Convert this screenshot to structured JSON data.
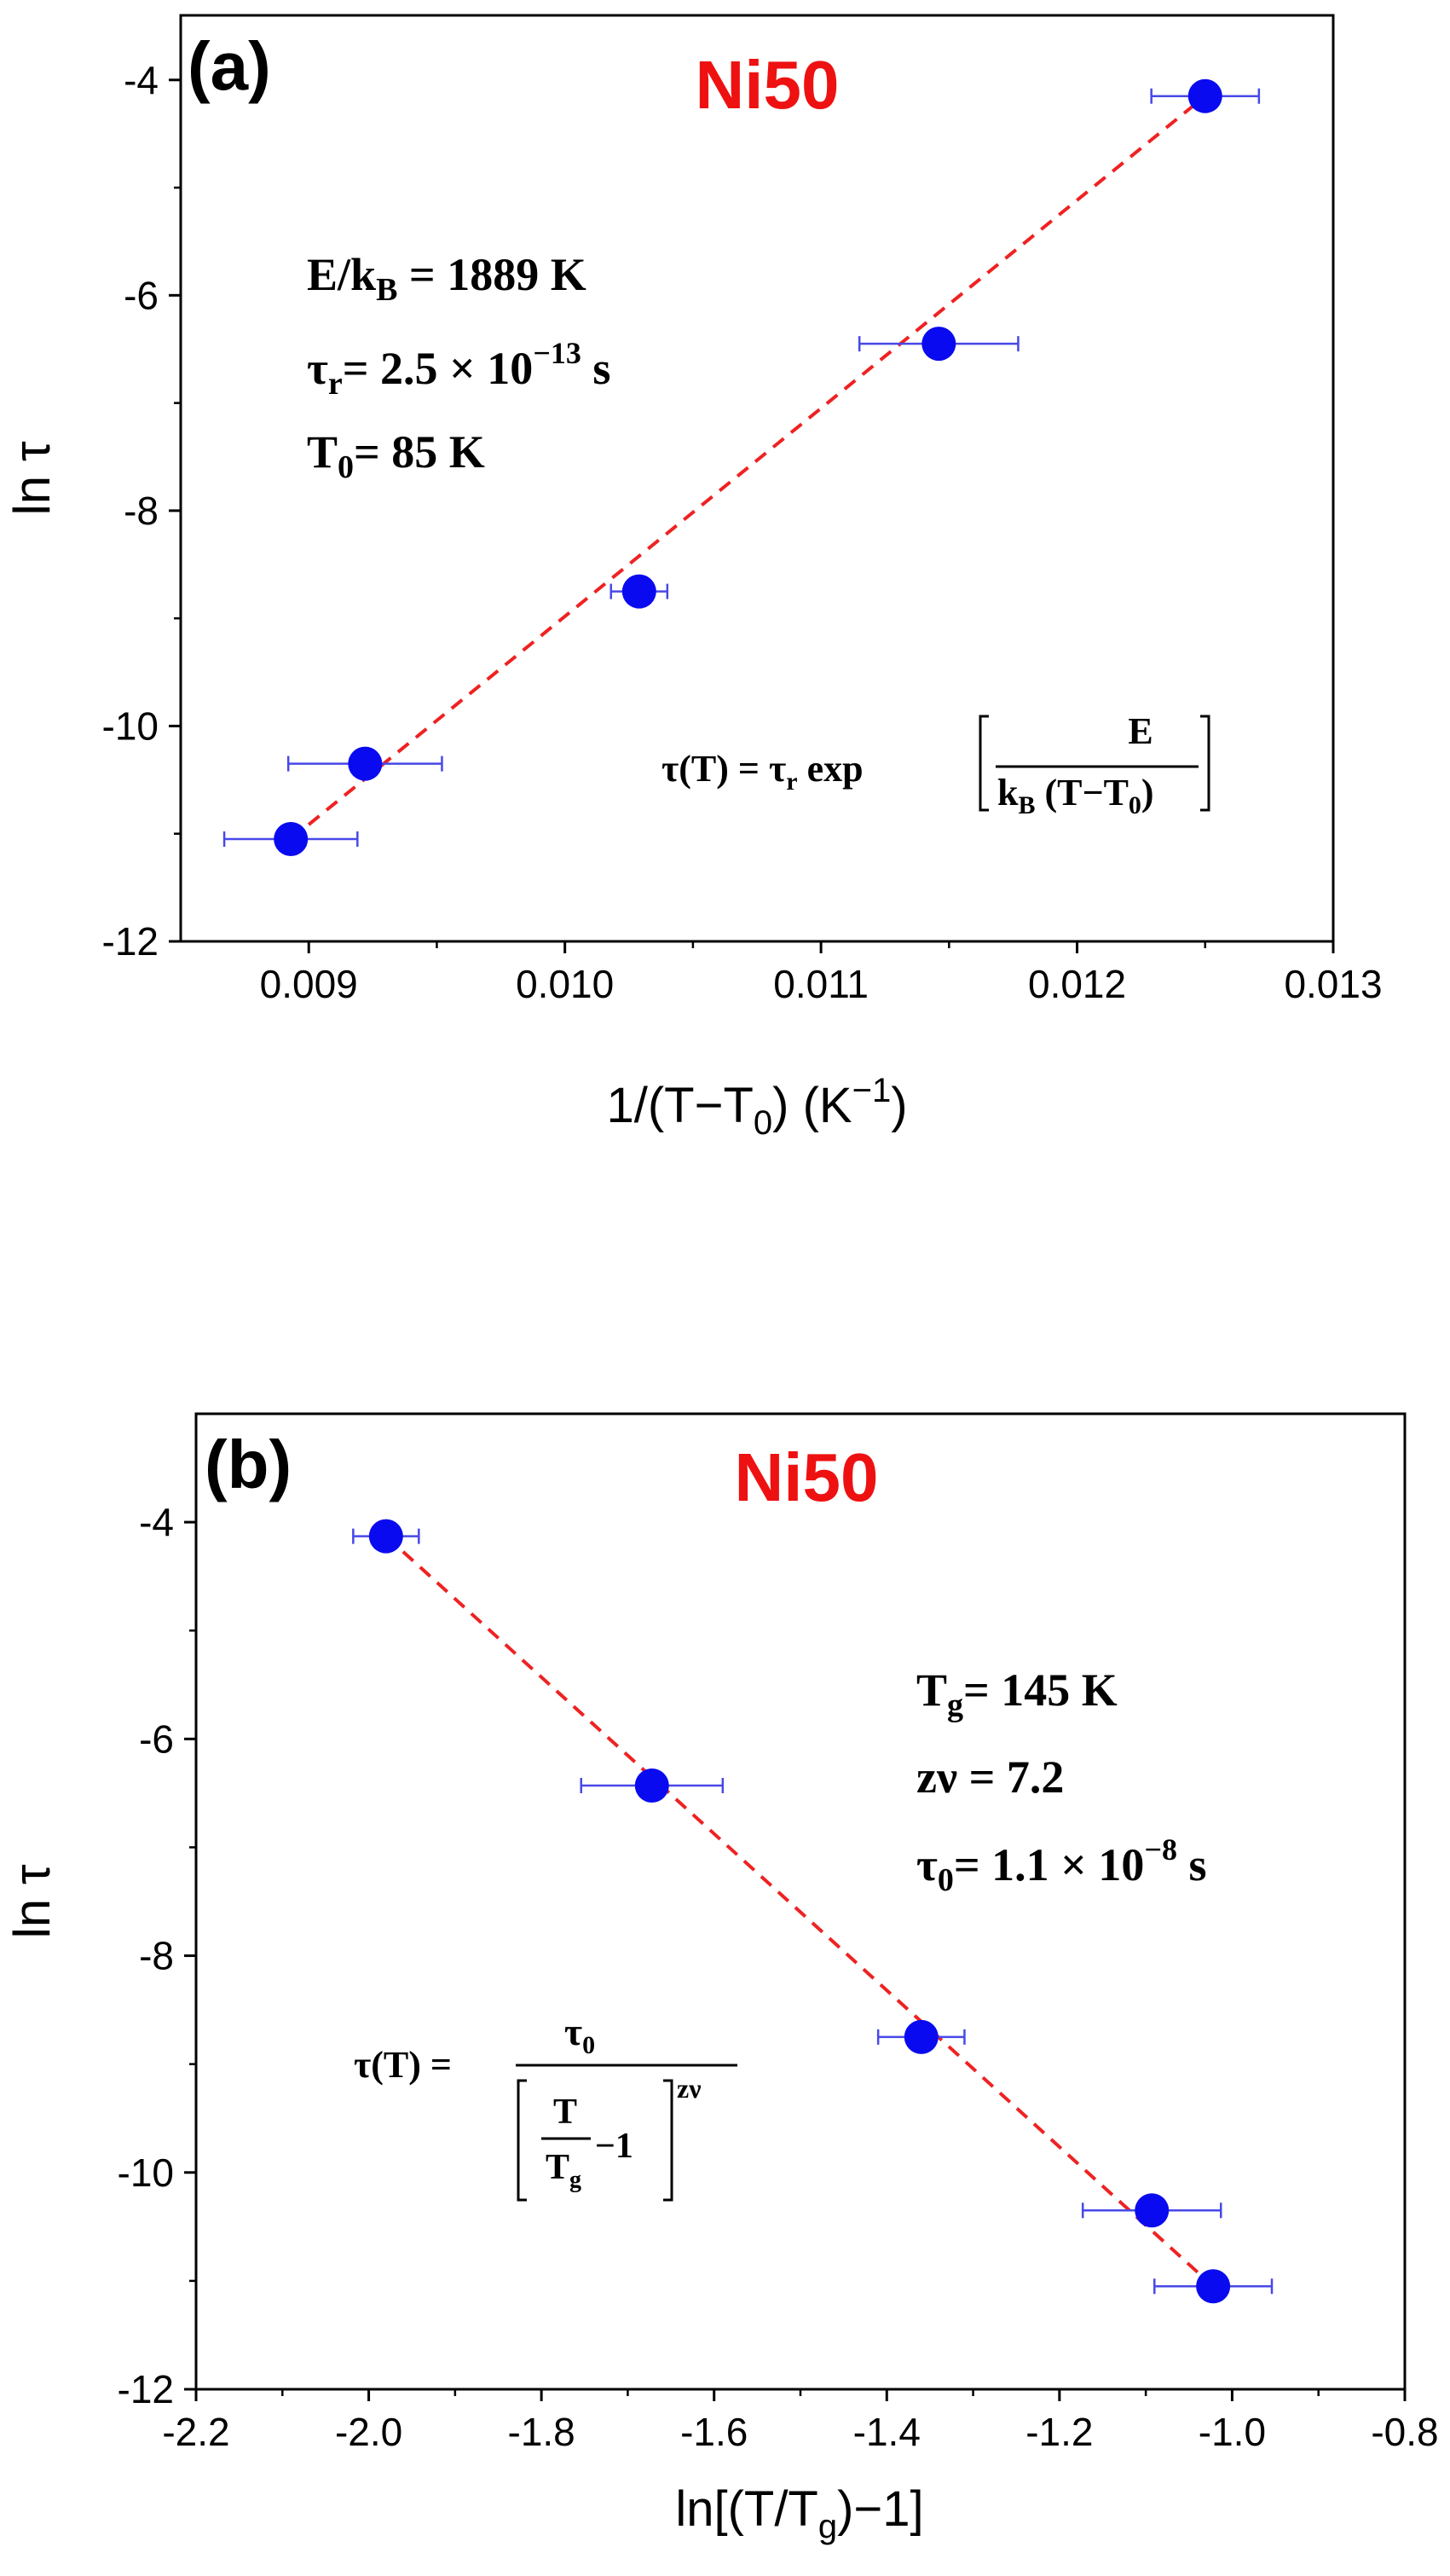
{
  "chart_data": [
    {
      "type": "scatter",
      "panel_label": "(a)",
      "title": "Ni50",
      "xlabel": "1/(T−T0) (K−1)",
      "ylabel": "ln τ",
      "xlim": [
        0.0085,
        0.013
      ],
      "ylim": [
        -12,
        -3.4
      ],
      "x_ticks": [
        0.009,
        0.01,
        0.011,
        0.012,
        0.013
      ],
      "x_tick_labels": [
        "0.009",
        "0.010",
        "0.011",
        "0.012",
        "0.013"
      ],
      "y_ticks": [
        -12,
        -10,
        -8,
        -6,
        -4
      ],
      "y_tick_labels": [
        "-12",
        "-10",
        "-8",
        "-6",
        "-4"
      ],
      "series": [
        {
          "name": "data",
          "x": [
            0.00893,
            0.00922,
            0.01029,
            0.01146,
            0.0125
          ],
          "y": [
            -11.05,
            -10.35,
            -8.75,
            -6.45,
            -4.15
          ],
          "x_err": [
            0.00026,
            0.0003,
            0.00011,
            0.00031,
            0.00021
          ]
        },
        {
          "name": "fit",
          "style": "dashed",
          "x": [
            0.00893,
            0.0125
          ],
          "y": [
            -11.05,
            -4.15
          ]
        }
      ],
      "annotations": {
        "params": [
          "E/kB = 1889 K",
          "τr= 2.5 × 10−13 s",
          "T0= 85 K"
        ],
        "formula": "τ(T) = τr exp[E / kB (T−T0)]"
      }
    },
    {
      "type": "scatter",
      "panel_label": "(b)",
      "title": "Ni50",
      "xlabel": "ln[(T/Tg)−1]",
      "ylabel": "ln τ",
      "xlim": [
        -2.2,
        -0.8
      ],
      "ylim": [
        -12,
        -3.0
      ],
      "x_ticks": [
        -2.2,
        -2.0,
        -1.8,
        -1.6,
        -1.4,
        -1.2,
        -1.0,
        -0.8
      ],
      "x_tick_labels": [
        "-2.2",
        "-2.0",
        "-1.8",
        "-1.6",
        "-1.4",
        "-1.2",
        "-1.0",
        "-0.8"
      ],
      "y_ticks": [
        -12,
        -10,
        -8,
        -6,
        -4
      ],
      "y_tick_labels": [
        "-12",
        "-10",
        "-8",
        "-6",
        "-4"
      ],
      "series": [
        {
          "name": "data",
          "x": [
            -1.98,
            -1.672,
            -1.36,
            -1.093,
            -1.022
          ],
          "y": [
            -4.13,
            -6.43,
            -8.75,
            -10.35,
            -11.05
          ],
          "x_err": [
            0.038,
            0.082,
            0.05,
            0.08,
            0.068
          ]
        },
        {
          "name": "fit",
          "style": "dashed",
          "x": [
            -1.98,
            -1.022
          ],
          "y": [
            -4.13,
            -11.05
          ]
        }
      ],
      "annotations": {
        "params": [
          "Tg= 145 K",
          "zν = 7.2",
          "τ0= 1.1 × 10−8 s"
        ],
        "formula": "τ(T) = τ0 / [T/Tg − 1]^zν"
      }
    }
  ],
  "colors": {
    "marker": "#0a0af0",
    "errorbar": "#4848e8",
    "fit": "#ee2222",
    "title": "#ee1111",
    "axis": "#000000"
  }
}
